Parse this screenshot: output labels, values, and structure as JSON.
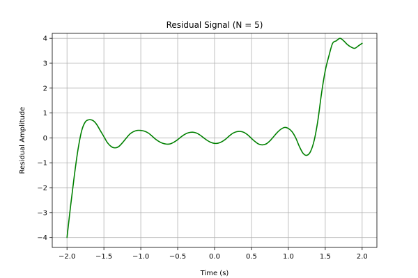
{
  "chart_data": {
    "type": "line",
    "title": "Residual Signal (N = 5)",
    "xlabel": "Time (s)",
    "ylabel": "Residual Amplitude",
    "xlim": [
      -2.2,
      2.2
    ],
    "ylim": [
      -4.4,
      4.2
    ],
    "xticks": [
      -2.0,
      -1.5,
      -1.0,
      -0.5,
      0.0,
      0.5,
      1.0,
      1.5,
      2.0
    ],
    "xtick_labels": [
      "−2.0",
      "−1.5",
      "−1.0",
      "−0.5",
      "0.0",
      "0.5",
      "1.0",
      "1.5",
      "2.0"
    ],
    "yticks": [
      -4,
      -3,
      -2,
      -1,
      0,
      1,
      2,
      3,
      4
    ],
    "ytick_labels": [
      "−4",
      "−3",
      "−2",
      "−1",
      "0",
      "1",
      "2",
      "3",
      "4"
    ],
    "grid": true,
    "series": [
      {
        "color": "#008000",
        "x": [
          -2.0,
          -1.95,
          -1.9,
          -1.85,
          -1.8,
          -1.75,
          -1.7,
          -1.65,
          -1.6,
          -1.55,
          -1.5,
          -1.45,
          -1.4,
          -1.35,
          -1.3,
          -1.25,
          -1.2,
          -1.15,
          -1.1,
          -1.05,
          -1.0,
          -0.95,
          -0.9,
          -0.85,
          -0.8,
          -0.75,
          -0.7,
          -0.65,
          -0.6,
          -0.55,
          -0.5,
          -0.45,
          -0.4,
          -0.35,
          -0.3,
          -0.25,
          -0.2,
          -0.15,
          -0.1,
          -0.05,
          0.0,
          0.05,
          0.1,
          0.15,
          0.2,
          0.25,
          0.3,
          0.35,
          0.4,
          0.45,
          0.5,
          0.55,
          0.6,
          0.65,
          0.7,
          0.75,
          0.8,
          0.85,
          0.9,
          0.95,
          1.0,
          1.05,
          1.1,
          1.15,
          1.2,
          1.25,
          1.3,
          1.35,
          1.4,
          1.45,
          1.5,
          1.55,
          1.6,
          1.65,
          1.7,
          1.75,
          1.8,
          1.85,
          1.9,
          1.95,
          2.0
        ],
        "values": [
          -4.0,
          -2.7,
          -1.5,
          -0.45,
          0.3,
          0.65,
          0.73,
          0.7,
          0.55,
          0.3,
          0.05,
          -0.2,
          -0.35,
          -0.4,
          -0.35,
          -0.2,
          -0.02,
          0.15,
          0.25,
          0.3,
          0.3,
          0.27,
          0.2,
          0.08,
          -0.05,
          -0.15,
          -0.22,
          -0.25,
          -0.24,
          -0.17,
          -0.07,
          0.05,
          0.15,
          0.21,
          0.23,
          0.2,
          0.12,
          0.01,
          -0.1,
          -0.18,
          -0.22,
          -0.21,
          -0.15,
          -0.05,
          0.08,
          0.19,
          0.25,
          0.26,
          0.22,
          0.12,
          -0.02,
          -0.15,
          -0.25,
          -0.28,
          -0.24,
          -0.12,
          0.05,
          0.22,
          0.35,
          0.42,
          0.38,
          0.25,
          0.0,
          -0.35,
          -0.62,
          -0.7,
          -0.55,
          -0.1,
          0.7,
          1.8,
          2.7,
          3.3,
          3.8,
          3.9,
          4.0,
          3.9,
          3.75,
          3.65,
          3.6,
          3.7,
          3.8
        ]
      }
    ]
  }
}
